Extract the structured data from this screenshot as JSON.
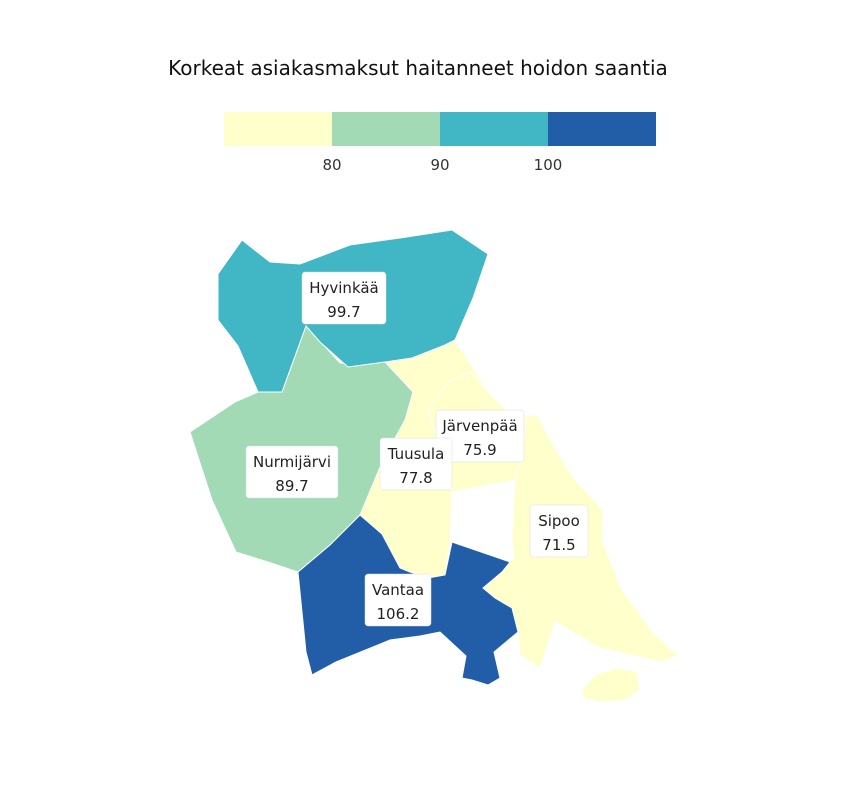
{
  "map_title": "Korkeat asiakasmaksut haitanneet hoidon saantia",
  "legend": {
    "colors": [
      "#ffffcc",
      "#a1dab4",
      "#41b6c4",
      "#225ea8"
    ],
    "ticks": [
      "80",
      "90",
      "100"
    ]
  },
  "regions": [
    {
      "id": "hyvinkaa",
      "name": "Hyvinkää",
      "value": "99.7",
      "color": "#41b6c4"
    },
    {
      "id": "nurmijarvi",
      "name": "Nurmijärvi",
      "value": "89.7",
      "color": "#a1dab4"
    },
    {
      "id": "tuusula",
      "name": "Tuusula",
      "value": "77.8",
      "color": "#ffffcc"
    },
    {
      "id": "jarvenpaa",
      "name": "Järvenpää",
      "value": "75.9",
      "color": "#ffffcc"
    },
    {
      "id": "sipoo",
      "name": "Sipoo",
      "value": "71.5",
      "color": "#ffffcc"
    },
    {
      "id": "vantaa",
      "name": "Vantaa",
      "value": "106.2",
      "color": "#225ea8"
    }
  ]
}
